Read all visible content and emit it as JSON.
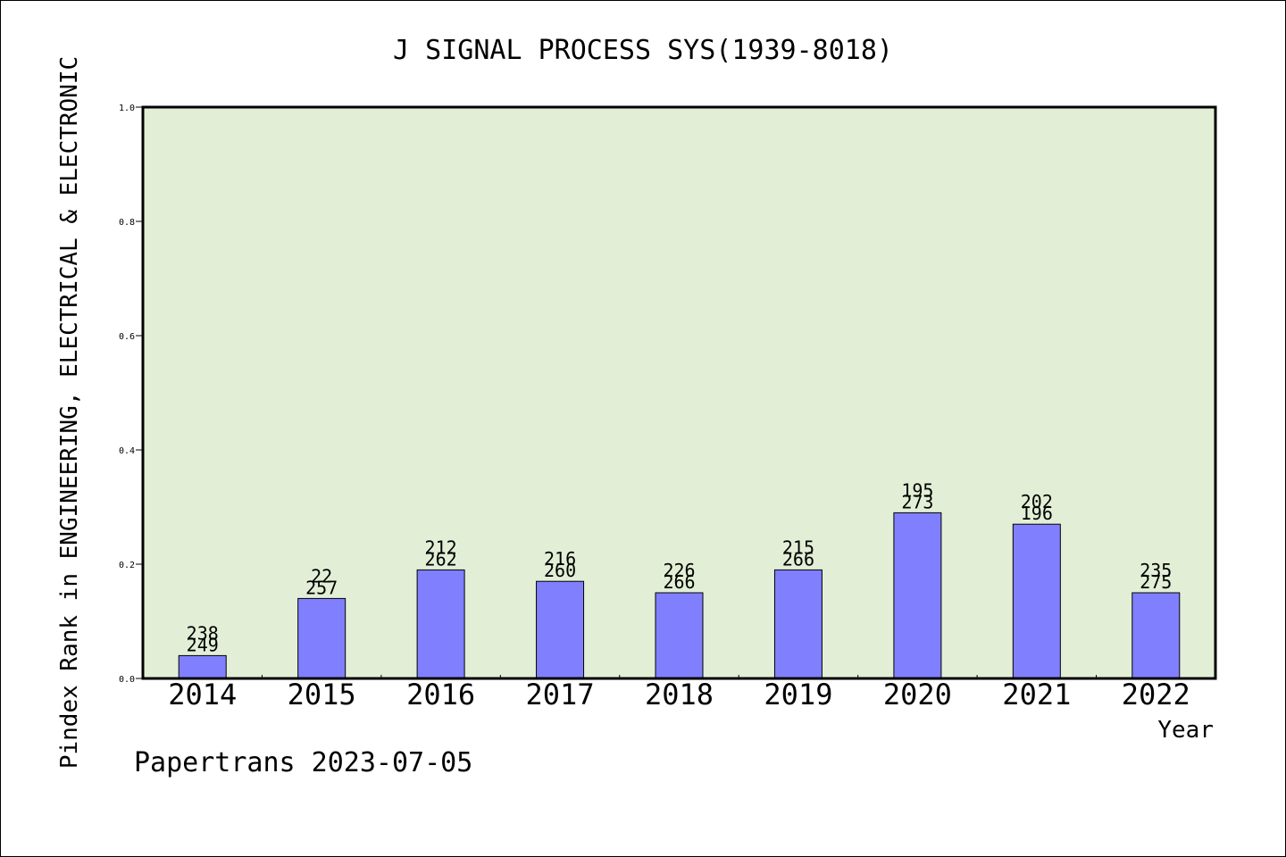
{
  "chart_data": {
    "type": "bar",
    "title": "J SIGNAL PROCESS SYS(1939-8018)",
    "xlabel": "Year",
    "ylabel": "Pindex Rank in ENGINEERING, ELECTRICAL & ELECTRONIC",
    "categories": [
      "2014",
      "2015",
      "2016",
      "2017",
      "2018",
      "2019",
      "2020",
      "2021",
      "2022"
    ],
    "values": [
      0.04,
      0.14,
      0.19,
      0.17,
      0.15,
      0.19,
      0.29,
      0.27,
      0.15
    ],
    "bar_labels": [
      {
        "top": "238",
        "bottom": "249"
      },
      {
        "top": "22",
        "bottom": "257"
      },
      {
        "top": "212",
        "bottom": "262"
      },
      {
        "top": "216",
        "bottom": "260"
      },
      {
        "top": "226",
        "bottom": "266"
      },
      {
        "top": "215",
        "bottom": "266"
      },
      {
        "top": "195",
        "bottom": "273"
      },
      {
        "top": "202",
        "bottom": "196"
      },
      {
        "top": "235",
        "bottom": "275"
      }
    ],
    "ylim": [
      0,
      1.0
    ],
    "yticks": [
      "0.0",
      "0.2",
      "0.4",
      "0.6",
      "0.8",
      "1.0"
    ],
    "grid": false,
    "legend": "none",
    "colors": {
      "bar": "#8080ff",
      "plot_background": "#e2efd6",
      "axis": "#000000"
    }
  },
  "footer": {
    "credit": "Papertrans 2023-07-05"
  }
}
